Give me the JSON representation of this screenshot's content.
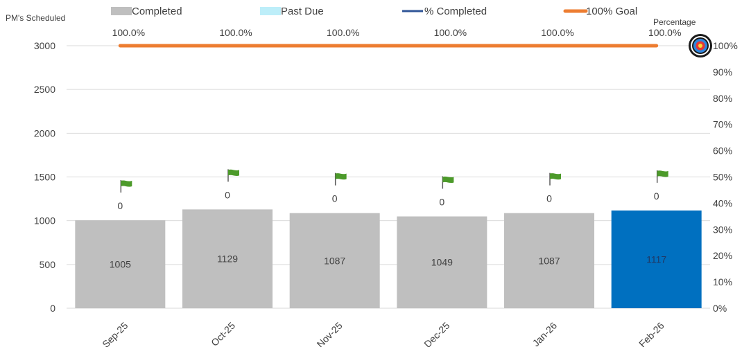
{
  "chart_data": {
    "type": "bar",
    "categories": [
      "Sep-25",
      "Oct-25",
      "Nov-25",
      "Dec-25",
      "Jan-26",
      "Feb-26"
    ],
    "series": [
      {
        "name": "Completed",
        "values": [
          1005,
          1129,
          1087,
          1049,
          1087,
          1117
        ]
      },
      {
        "name": "Past Due",
        "values": [
          0,
          0,
          0,
          0,
          0,
          0
        ]
      },
      {
        "name": "% Completed",
        "values": [
          100.0,
          100.0,
          100.0,
          100.0,
          100.0,
          100.0
        ]
      },
      {
        "name": "100% Goal",
        "values": [
          100,
          100,
          100,
          100,
          100,
          100
        ]
      }
    ],
    "labels": {
      "completed": [
        "1005",
        "1129",
        "1087",
        "1049",
        "1087",
        "1117"
      ],
      "past_due": [
        "0",
        "0",
        "0",
        "0",
        "0",
        "0"
      ],
      "percent": [
        "100.0%",
        "100.0%",
        "100.0%",
        "100.0%",
        "100.0%",
        "100.0%"
      ]
    },
    "ylabel_left": "PM's Scheduled",
    "ylabel_right": "Percentage",
    "ylim_left": [
      0,
      3000
    ],
    "ylim_right": [
      0,
      100
    ],
    "yticks_left": [
      "0",
      "500",
      "1000",
      "1500",
      "2000",
      "2500",
      "3000"
    ],
    "yticks_right": [
      "0%",
      "10%",
      "20%",
      "30%",
      "40%",
      "50%",
      "60%",
      "70%",
      "80%",
      "90%",
      "100%"
    ],
    "legend_position": "top",
    "grid": true,
    "highlight_index": 5,
    "colors": {
      "completed": "#bfbfbf",
      "highlight": "#0070c0",
      "past_due": "#bdeef9",
      "percent_completed": "#2f5597",
      "goal": "#ed7d31",
      "flag": "#4c9a2a",
      "grid": "#d9d9d9",
      "text": "#404040"
    },
    "icons": {
      "bar_marker": "flag-icon",
      "goal_marker": "target-icon"
    }
  }
}
